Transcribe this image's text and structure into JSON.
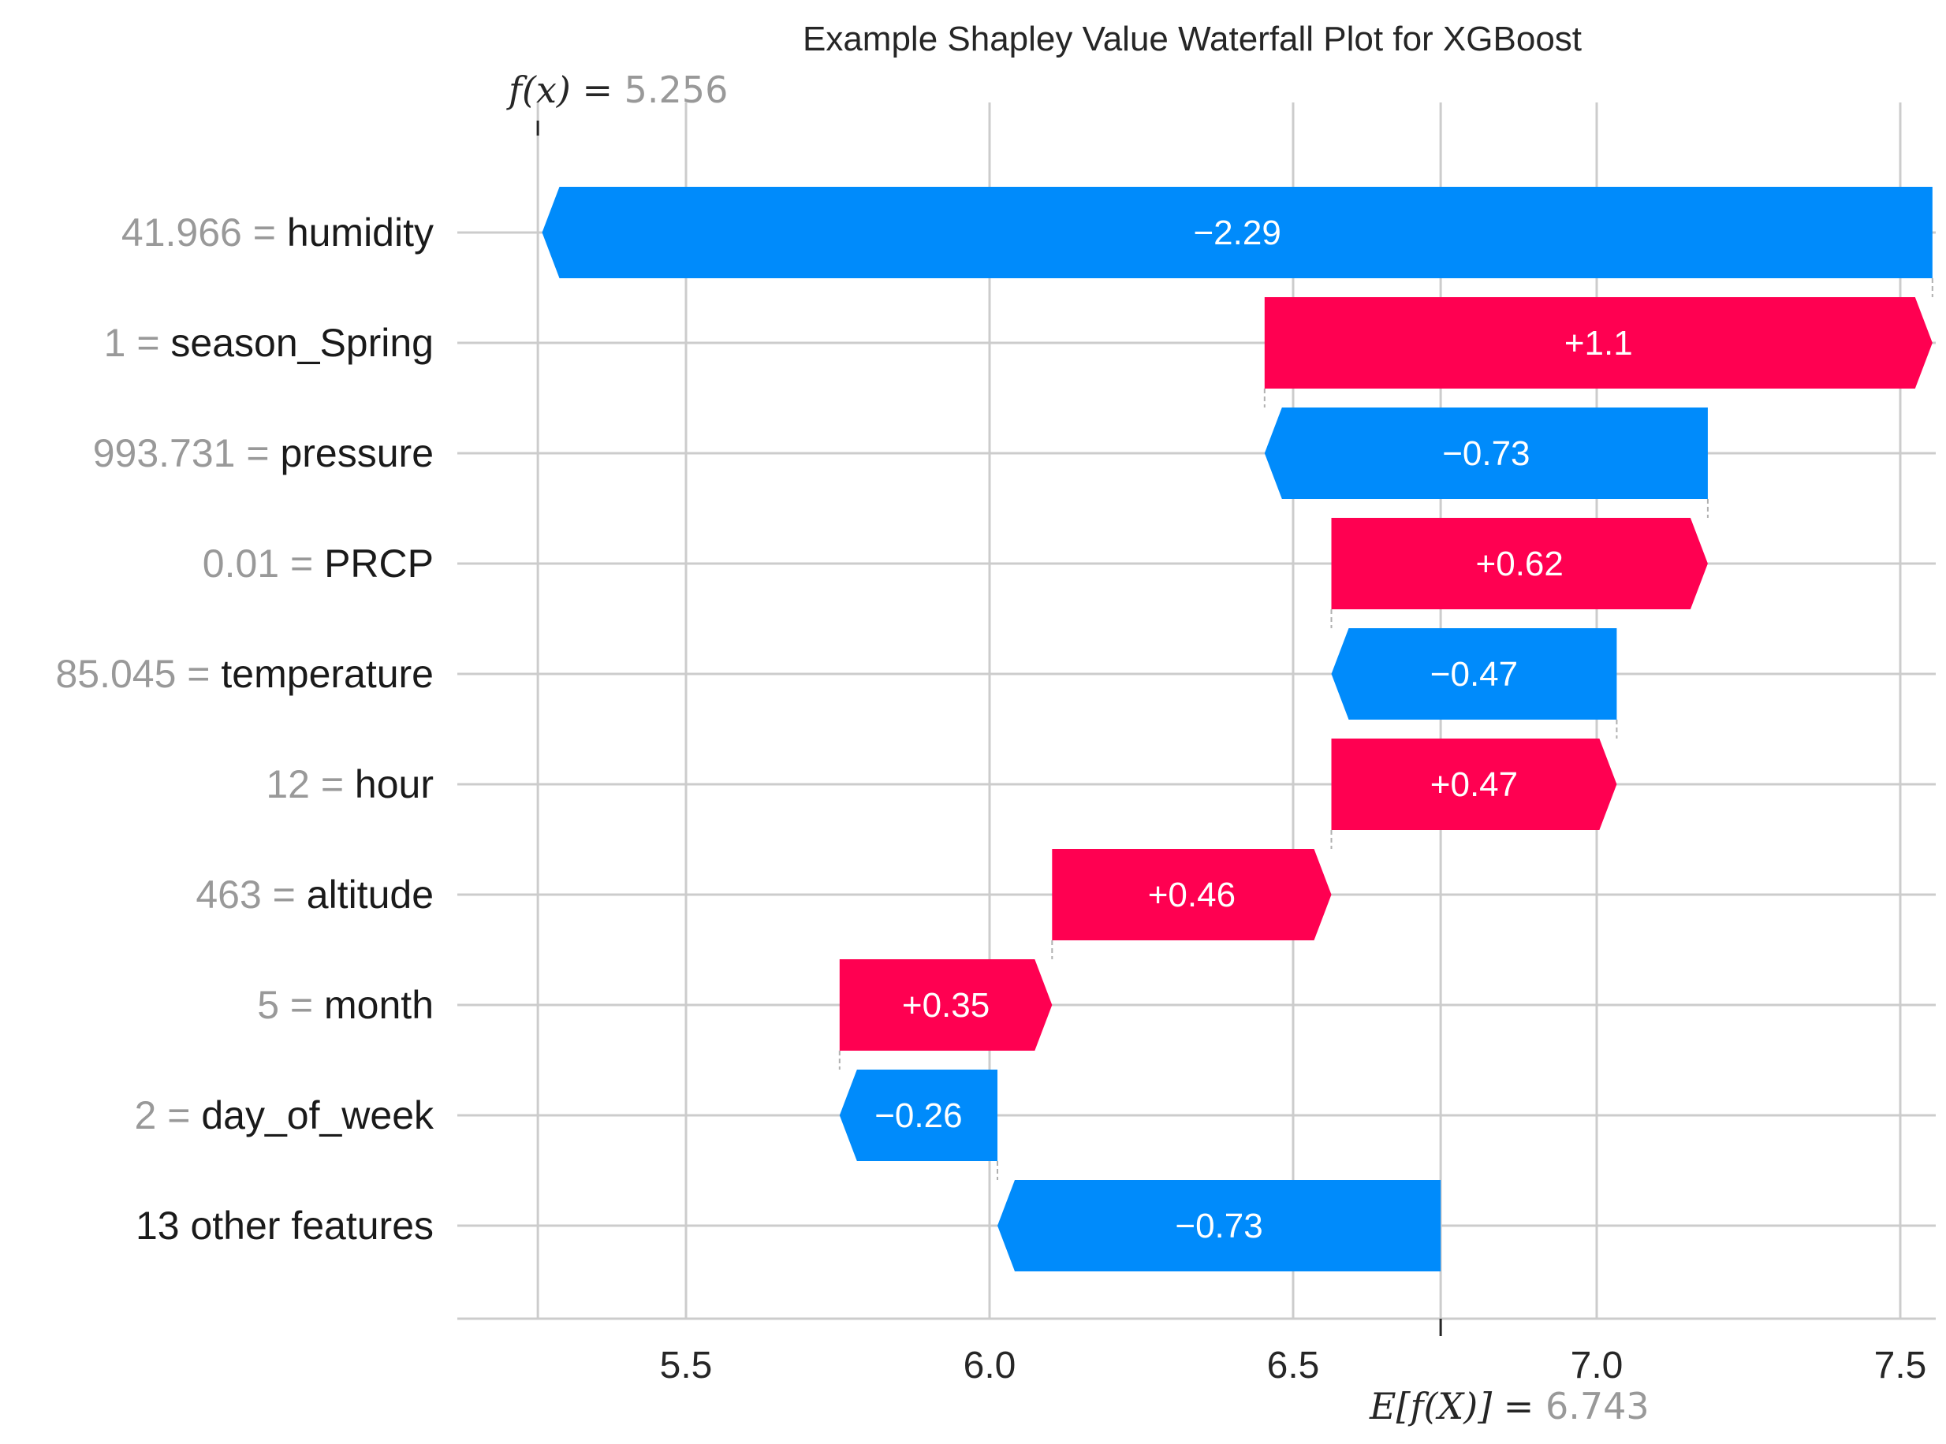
{
  "chart_data": {
    "type": "waterfall",
    "title": "Example Shapley Value Waterfall Plot for XGBoost",
    "base_value": 6.743,
    "base_value_label": "6.743",
    "base_expr": "E[f(X)] =",
    "output_value": 5.256,
    "output_value_label": "5.256",
    "output_expr": "f(x) =",
    "features": [
      {
        "value": "41.966",
        "name": "humidity",
        "shap": -2.29,
        "label": "−2.29"
      },
      {
        "value": "1",
        "name": "season_Spring",
        "shap": 1.1,
        "label": "+1.1"
      },
      {
        "value": "993.731",
        "name": "pressure",
        "shap": -0.73,
        "label": "−0.73"
      },
      {
        "value": "0.01",
        "name": "PRCP",
        "shap": 0.62,
        "label": "+0.62"
      },
      {
        "value": "85.045",
        "name": "temperature",
        "shap": -0.47,
        "label": "−0.47"
      },
      {
        "value": "12",
        "name": "hour",
        "shap": 0.47,
        "label": "+0.47"
      },
      {
        "value": "463",
        "name": "altitude",
        "shap": 0.46,
        "label": "+0.46"
      },
      {
        "value": "5",
        "name": "month",
        "shap": 0.35,
        "label": "+0.35"
      },
      {
        "value": "2",
        "name": "day_of_week",
        "shap": -0.26,
        "label": "−0.26"
      },
      {
        "value": "",
        "name": "13 other features",
        "shap": -0.73,
        "label": "−0.73"
      }
    ],
    "xticks": [
      "5.5",
      "6.0",
      "6.5",
      "7.0",
      "7.5"
    ],
    "xlim": [
      5.19,
      7.55
    ],
    "grid": true,
    "colors": {
      "positive": "#ff0051",
      "negative": "#008bfb",
      "grid": "#cccccc",
      "muted_text": "#999999"
    }
  }
}
